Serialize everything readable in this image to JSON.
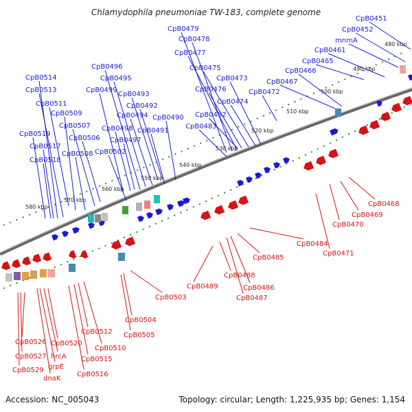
{
  "header": {
    "title": "Chlamydophila pneumoniae TW-183, complete genome"
  },
  "footer": {
    "accession": "Accession: NC_005043",
    "summary": "Topology: circular; Length: 1,225,935 bp; Genes: 1,154"
  },
  "colors": {
    "forward": "#1a1ad6",
    "reverse": "#d41414",
    "backbone": "#888888",
    "ruler": "#2a8a2a"
  },
  "scale_labels": [
    "480 kbp",
    "490 kbp",
    "500 kbp",
    "510 kbp",
    "520 kbp",
    "530 kbp",
    "540 kbp",
    "550 kbp",
    "560 kbp",
    "570 kbp",
    "580 kbp"
  ],
  "forward_genes": [
    "CpB0451",
    "CpB0452",
    "mnmA",
    "CpB0461",
    "CpB0465",
    "CpB0466",
    "CpB0467",
    "CpB0472",
    "CpB0473",
    "CpB0474",
    "CpB0475",
    "CpB0476",
    "CpB0477",
    "CpB0478",
    "CpB0479",
    "CpB0482",
    "CpB0483",
    "CpB0490",
    "CpB0491",
    "CpB0492",
    "CpB0493",
    "CpB0494",
    "CpB0495",
    "CpB0496",
    "CpB0497",
    "CpB0498",
    "CpB0499",
    "CpB0502",
    "CpB0506",
    "CpB0507",
    "CpB0508",
    "CpB0509",
    "CpB0511",
    "CpB0513",
    "CpB0514",
    "CpB0517",
    "CpB0518",
    "CpB0519"
  ],
  "reverse_genes": [
    "CpB0468",
    "CpB0469",
    "CpB0470",
    "CpB0471",
    "CpB0484",
    "CpB0485",
    "CpB0486",
    "CpB0487",
    "CpB0488",
    "CpB0489",
    "CpB0503",
    "CpB0504",
    "CpB0505",
    "CpB0510",
    "CpB0512",
    "CpB0515",
    "CpB0516",
    "CpB0520",
    "hrcA",
    "grpE",
    "dnaK",
    "CpB0526",
    "CpB0527",
    "CpB0529"
  ]
}
